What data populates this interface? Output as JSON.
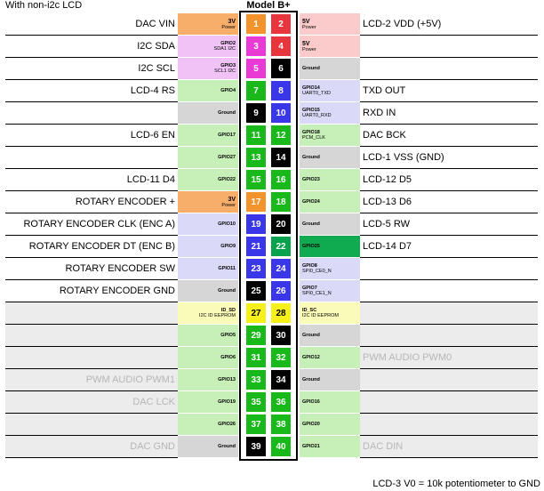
{
  "header": {
    "title_left": "With non-i2c LCD",
    "model": "Model B+"
  },
  "footer": {
    "note": "LCD-3 V0 = 10k potentiometer to GND"
  },
  "colors": {
    "power3v": "#f6ae6a",
    "power5v": "#fbcbcb",
    "i2c": "#f0c2f5",
    "ground": "#d6d6d6",
    "gpio": "#c6f0b7",
    "uart": "#dad9f8",
    "id": "#fbfbb9",
    "gpio25": "#10aa50",
    "pin_orange": "#f3932c",
    "pin_red": "#e8363e",
    "pin_magenta": "#e93ad6",
    "pin_black": "#000000",
    "pin_green": "#1ab91b",
    "pin_blue": "#3a37e8",
    "pin_yellow": "#f8f01a",
    "pin_darkgreen": "#08a24e"
  },
  "rows": [
    {
      "left_desc": "DAC VIN",
      "left_bg": "",
      "left_faded": false,
      "left_gpio": {
        "text": "3V",
        "sub": "Power",
        "color": "power3v",
        "big": true
      },
      "pin_left": {
        "num": "1",
        "color": "pin_orange",
        "text": "#fff"
      },
      "pin_right": {
        "num": "2",
        "color": "pin_red",
        "text": "#fff"
      },
      "right_gpio": {
        "text": "5V",
        "sub": "Power",
        "color": "power5v",
        "big": true
      },
      "right_desc": "LCD-2 VDD (+5V)",
      "right_bg": "",
      "right_faded": false
    },
    {
      "left_desc": "I2C SDA",
      "left_bg": "",
      "left_faded": false,
      "left_gpio": {
        "text": "GPIO2",
        "sub": "SDA1 I2C",
        "color": "i2c",
        "big": false
      },
      "pin_left": {
        "num": "3",
        "color": "pin_magenta",
        "text": "#fff"
      },
      "pin_right": {
        "num": "4",
        "color": "pin_red",
        "text": "#fff"
      },
      "right_gpio": {
        "text": "5V",
        "sub": "Power",
        "color": "power5v",
        "big": true
      },
      "right_desc": "",
      "right_bg": "",
      "right_faded": false
    },
    {
      "left_desc": "I2C SCL",
      "left_bg": "",
      "left_faded": false,
      "left_gpio": {
        "text": "GPIO3",
        "sub": "SCL1 I2C",
        "color": "i2c",
        "big": false
      },
      "pin_left": {
        "num": "5",
        "color": "pin_magenta",
        "text": "#fff"
      },
      "pin_right": {
        "num": "6",
        "color": "pin_black",
        "text": "#fff"
      },
      "right_gpio": {
        "text": "Ground",
        "sub": "",
        "color": "ground",
        "big": false
      },
      "right_desc": "",
      "right_bg": "",
      "right_faded": false
    },
    {
      "left_desc": "LCD-4 RS",
      "left_bg": "",
      "left_faded": false,
      "left_gpio": {
        "text": "GPIO4",
        "sub": "",
        "color": "gpio",
        "big": false
      },
      "pin_left": {
        "num": "7",
        "color": "pin_green",
        "text": "#fff"
      },
      "pin_right": {
        "num": "8",
        "color": "pin_blue",
        "text": "#fff"
      },
      "right_gpio": {
        "text": "GPIO14",
        "sub": "UART0_TXD",
        "color": "uart",
        "big": false
      },
      "right_desc": "TXD OUT",
      "right_bg": "",
      "right_faded": false
    },
    {
      "left_desc": "",
      "left_bg": "",
      "left_faded": false,
      "left_gpio": {
        "text": "Ground",
        "sub": "",
        "color": "ground",
        "big": false
      },
      "pin_left": {
        "num": "9",
        "color": "pin_black",
        "text": "#fff"
      },
      "pin_right": {
        "num": "10",
        "color": "pin_blue",
        "text": "#fff"
      },
      "right_gpio": {
        "text": "GPIO15",
        "sub": "UART0_RXD",
        "color": "uart",
        "big": false
      },
      "right_desc": "RXD IN",
      "right_bg": "",
      "right_faded": false
    },
    {
      "left_desc": "LCD-6 EN",
      "left_bg": "",
      "left_faded": false,
      "left_gpio": {
        "text": "GPIO17",
        "sub": "",
        "color": "gpio",
        "big": false
      },
      "pin_left": {
        "num": "11",
        "color": "pin_green",
        "text": "#fff"
      },
      "pin_right": {
        "num": "12",
        "color": "pin_green",
        "text": "#fff"
      },
      "right_gpio": {
        "text": "GPIO18",
        "sub": "PCM_CLK",
        "color": "gpio",
        "big": false
      },
      "right_desc": "DAC BCK",
      "right_bg": "",
      "right_faded": false
    },
    {
      "left_desc": "",
      "left_bg": "",
      "left_faded": false,
      "left_gpio": {
        "text": "GPIO27",
        "sub": "",
        "color": "gpio",
        "big": false
      },
      "pin_left": {
        "num": "13",
        "color": "pin_green",
        "text": "#fff"
      },
      "pin_right": {
        "num": "14",
        "color": "pin_black",
        "text": "#fff"
      },
      "right_gpio": {
        "text": "Ground",
        "sub": "",
        "color": "ground",
        "big": false
      },
      "right_desc": "LCD-1 VSS (GND)",
      "right_bg": "",
      "right_faded": false
    },
    {
      "left_desc": "LCD-11 D4",
      "left_bg": "",
      "left_faded": false,
      "left_gpio": {
        "text": "GPIO22",
        "sub": "",
        "color": "gpio",
        "big": false
      },
      "pin_left": {
        "num": "15",
        "color": "pin_green",
        "text": "#fff"
      },
      "pin_right": {
        "num": "16",
        "color": "pin_green",
        "text": "#fff"
      },
      "right_gpio": {
        "text": "GPIO23",
        "sub": "",
        "color": "gpio",
        "big": false
      },
      "right_desc": "LCD-12 D5",
      "right_bg": "",
      "right_faded": false
    },
    {
      "left_desc": "ROTARY ENCODER +",
      "left_bg": "",
      "left_faded": false,
      "left_gpio": {
        "text": "3V",
        "sub": "Power",
        "color": "power3v",
        "big": true
      },
      "pin_left": {
        "num": "17",
        "color": "pin_orange",
        "text": "#fff"
      },
      "pin_right": {
        "num": "18",
        "color": "pin_green",
        "text": "#fff"
      },
      "right_gpio": {
        "text": "GPIO24",
        "sub": "",
        "color": "gpio",
        "big": false
      },
      "right_desc": "LCD-13 D6",
      "right_bg": "",
      "right_faded": false
    },
    {
      "left_desc": "ROTARY ENCODER CLK (ENC A)",
      "left_bg": "",
      "left_faded": false,
      "left_gpio": {
        "text": "GPIO10",
        "sub": "",
        "color": "uart",
        "big": false
      },
      "pin_left": {
        "num": "19",
        "color": "pin_blue",
        "text": "#fff"
      },
      "pin_right": {
        "num": "20",
        "color": "pin_black",
        "text": "#fff"
      },
      "right_gpio": {
        "text": "Ground",
        "sub": "",
        "color": "ground",
        "big": false
      },
      "right_desc": "LCD-5 RW",
      "right_bg": "",
      "right_faded": false
    },
    {
      "left_desc": "ROTARY ENCODER DT (ENC B)",
      "left_bg": "",
      "left_faded": false,
      "left_gpio": {
        "text": "GPIO9",
        "sub": "",
        "color": "uart",
        "big": false
      },
      "pin_left": {
        "num": "21",
        "color": "pin_blue",
        "text": "#fff"
      },
      "pin_right": {
        "num": "22",
        "color": "pin_darkgreen",
        "text": "#fff"
      },
      "right_gpio": {
        "text": "GPIO25",
        "sub": "",
        "color": "gpio25",
        "big": false
      },
      "right_desc": "LCD-14 D7",
      "right_bg": "",
      "right_faded": false
    },
    {
      "left_desc": "ROTARY ENCODER SW",
      "left_bg": "",
      "left_faded": false,
      "left_gpio": {
        "text": "GPIO11",
        "sub": "",
        "color": "uart",
        "big": false
      },
      "pin_left": {
        "num": "23",
        "color": "pin_blue",
        "text": "#fff"
      },
      "pin_right": {
        "num": "24",
        "color": "pin_blue",
        "text": "#fff"
      },
      "right_gpio": {
        "text": "GPIO8",
        "sub": "SPI0_CE0_N",
        "color": "uart",
        "big": false
      },
      "right_desc": "",
      "right_bg": "",
      "right_faded": false
    },
    {
      "left_desc": "ROTARY ENCODER GND",
      "left_bg": "",
      "left_faded": false,
      "left_gpio": {
        "text": "Ground",
        "sub": "",
        "color": "ground",
        "big": false
      },
      "pin_left": {
        "num": "25",
        "color": "pin_black",
        "text": "#fff"
      },
      "pin_right": {
        "num": "26",
        "color": "pin_blue",
        "text": "#fff"
      },
      "right_gpio": {
        "text": "GPIO7",
        "sub": "SPI0_CE1_N",
        "color": "uart",
        "big": false
      },
      "right_desc": "",
      "right_bg": "",
      "right_faded": false
    },
    {
      "left_desc": "",
      "left_bg": "shade",
      "left_faded": false,
      "left_gpio": {
        "text": "ID_SD",
        "sub": "I2C ID EEPROM",
        "color": "id",
        "big": false
      },
      "pin_left": {
        "num": "27",
        "color": "pin_yellow",
        "text": "#000"
      },
      "pin_right": {
        "num": "28",
        "color": "pin_yellow",
        "text": "#000"
      },
      "right_gpio": {
        "text": "ID_SC",
        "sub": "I2C ID EEPROM",
        "color": "id",
        "big": false
      },
      "right_desc": "",
      "right_bg": "shade",
      "right_faded": false
    },
    {
      "left_desc": "",
      "left_bg": "shade",
      "left_faded": false,
      "left_gpio": {
        "text": "GPIO5",
        "sub": "",
        "color": "gpio",
        "big": false
      },
      "pin_left": {
        "num": "29",
        "color": "pin_green",
        "text": "#fff"
      },
      "pin_right": {
        "num": "30",
        "color": "pin_black",
        "text": "#fff"
      },
      "right_gpio": {
        "text": "Ground",
        "sub": "",
        "color": "ground",
        "big": false
      },
      "right_desc": "",
      "right_bg": "shade",
      "right_faded": false
    },
    {
      "left_desc": "",
      "left_bg": "shade",
      "left_faded": false,
      "left_gpio": {
        "text": "GPIO6",
        "sub": "",
        "color": "gpio",
        "big": false
      },
      "pin_left": {
        "num": "31",
        "color": "pin_green",
        "text": "#fff"
      },
      "pin_right": {
        "num": "32",
        "color": "pin_green",
        "text": "#fff"
      },
      "right_gpio": {
        "text": "GPIO12",
        "sub": "",
        "color": "gpio",
        "big": false
      },
      "right_desc": "PWM AUDIO PWM0",
      "right_bg": "shade",
      "right_faded": true
    },
    {
      "left_desc": "PWM AUDIO PWM1",
      "left_bg": "shade",
      "left_faded": true,
      "left_gpio": {
        "text": "GPIO13",
        "sub": "",
        "color": "gpio",
        "big": false
      },
      "pin_left": {
        "num": "33",
        "color": "pin_green",
        "text": "#fff"
      },
      "pin_right": {
        "num": "34",
        "color": "pin_black",
        "text": "#fff"
      },
      "right_gpio": {
        "text": "Ground",
        "sub": "",
        "color": "ground",
        "big": false
      },
      "right_desc": "",
      "right_bg": "shade",
      "right_faded": false
    },
    {
      "left_desc": "DAC LCK",
      "left_bg": "shade",
      "left_faded": true,
      "left_gpio": {
        "text": "GPIO19",
        "sub": "",
        "color": "gpio",
        "big": false
      },
      "pin_left": {
        "num": "35",
        "color": "pin_green",
        "text": "#fff"
      },
      "pin_right": {
        "num": "36",
        "color": "pin_green",
        "text": "#fff"
      },
      "right_gpio": {
        "text": "GPIO16",
        "sub": "",
        "color": "gpio",
        "big": false
      },
      "right_desc": "",
      "right_bg": "shade",
      "right_faded": false
    },
    {
      "left_desc": "",
      "left_bg": "shade",
      "left_faded": false,
      "left_gpio": {
        "text": "GPIO26",
        "sub": "",
        "color": "gpio",
        "big": false
      },
      "pin_left": {
        "num": "37",
        "color": "pin_green",
        "text": "#fff"
      },
      "pin_right": {
        "num": "38",
        "color": "pin_green",
        "text": "#fff"
      },
      "right_gpio": {
        "text": "GPIO20",
        "sub": "",
        "color": "gpio",
        "big": false
      },
      "right_desc": "",
      "right_bg": "shade",
      "right_faded": false
    },
    {
      "left_desc": "DAC GND",
      "left_bg": "shade",
      "left_faded": true,
      "left_gpio": {
        "text": "Ground",
        "sub": "",
        "color": "ground",
        "big": false
      },
      "pin_left": {
        "num": "39",
        "color": "pin_black",
        "text": "#fff"
      },
      "pin_right": {
        "num": "40",
        "color": "pin_green",
        "text": "#fff"
      },
      "right_gpio": {
        "text": "GPIO21",
        "sub": "",
        "color": "gpio",
        "big": false
      },
      "right_desc": "DAC DIN",
      "right_bg": "shade",
      "right_faded": true
    }
  ]
}
